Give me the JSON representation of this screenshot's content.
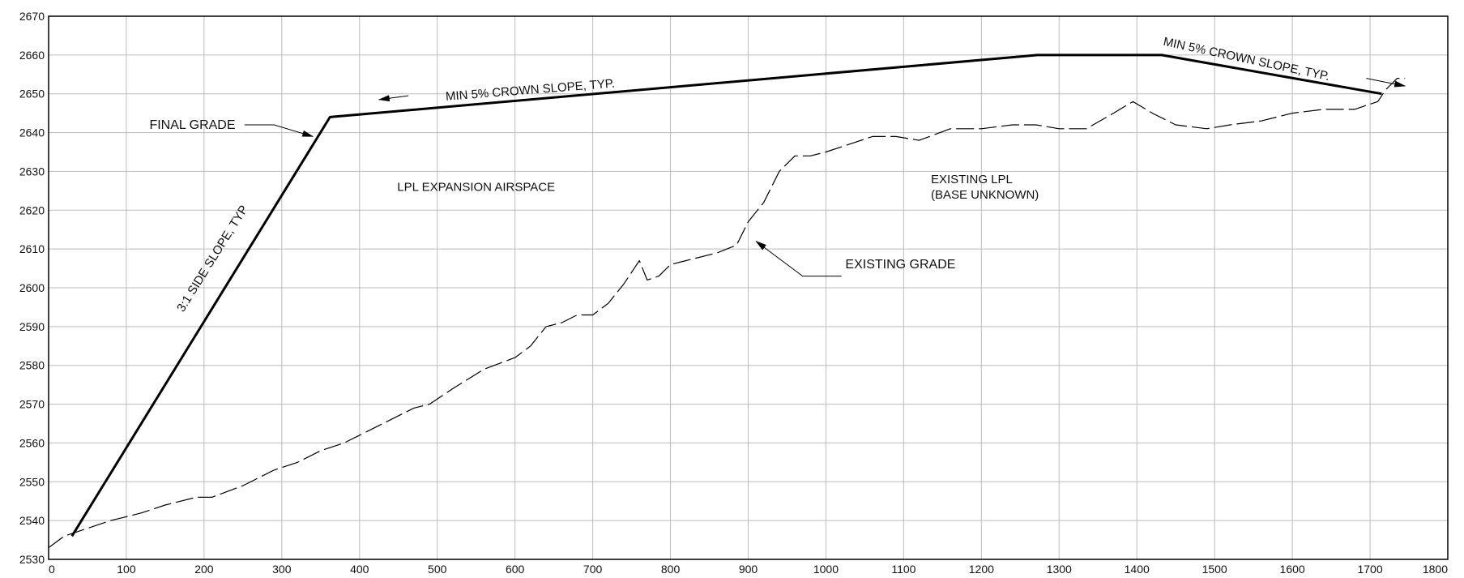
{
  "chart_data": {
    "type": "line",
    "title": "",
    "xlabel": "",
    "ylabel": "",
    "xlim": [
      0,
      1800
    ],
    "ylim": [
      2530,
      2670
    ],
    "grid": true,
    "x_ticks": [
      0,
      100,
      200,
      300,
      400,
      500,
      600,
      700,
      800,
      900,
      1000,
      1100,
      1200,
      1300,
      1400,
      1500,
      1600,
      1700,
      1800
    ],
    "y_ticks": [
      2530,
      2540,
      2550,
      2560,
      2570,
      2580,
      2590,
      2600,
      2610,
      2620,
      2630,
      2640,
      2650,
      2660,
      2670
    ],
    "series": [
      {
        "name": "FINAL GRADE",
        "style": "solid",
        "color": "#000000",
        "x": [
          30,
          362,
          1272,
          1432,
          1715
        ],
        "y": [
          2536,
          2644,
          2660,
          2660,
          2650
        ]
      },
      {
        "name": "EXISTING GRADE",
        "style": "dashed",
        "color": "#000000",
        "x": [
          0,
          20,
          50,
          80,
          100,
          120,
          150,
          190,
          210,
          250,
          290,
          320,
          350,
          380,
          400,
          430,
          470,
          490,
          520,
          560,
          600,
          620,
          640,
          660,
          680,
          700,
          720,
          740,
          760,
          770,
          785,
          800,
          820,
          860,
          885,
          900,
          920,
          940,
          960,
          980,
          1000,
          1030,
          1060,
          1090,
          1120,
          1160,
          1200,
          1240,
          1270,
          1300,
          1335,
          1370,
          1395,
          1420,
          1450,
          1490,
          1520,
          1560,
          1600,
          1640,
          1680,
          1710,
          1720,
          1735,
          1745
        ],
        "y": [
          2533,
          2536,
          2538,
          2540,
          2541,
          2542,
          2544,
          2546,
          2546,
          2549,
          2553,
          2555,
          2558,
          2560,
          2562,
          2565,
          2569,
          2570,
          2574,
          2579,
          2582,
          2585,
          2590,
          2591,
          2593,
          2593,
          2596,
          2601,
          2607,
          2602,
          2603,
          2606,
          2607,
          2609,
          2611,
          2617,
          2622,
          2630,
          2634,
          2634,
          2635,
          2637,
          2639,
          2639,
          2638,
          2641,
          2641,
          2642,
          2642,
          2641,
          2641,
          2645,
          2648,
          2645,
          2642,
          2641,
          2642,
          2643,
          2645,
          2646,
          2646,
          2648,
          2651,
          2654,
          2654
        ]
      }
    ],
    "annotations": [
      {
        "id": "final-grade",
        "text": "FINAL GRADE",
        "x": 185,
        "y": 2641
      },
      {
        "id": "crown-slope-left",
        "text": "MIN 5% CROWN SLOPE, TYP.",
        "x": 620,
        "y": 2650
      },
      {
        "id": "crown-slope-right",
        "text": "MIN 5% CROWN SLOPE, TYP.",
        "x": 1540,
        "y": 2658
      },
      {
        "id": "side-slope",
        "text": "3:1 SIDE SLOPE, TYP",
        "x": 215,
        "y": 2607
      },
      {
        "id": "expansion-airspace",
        "text": "LPL EXPANSION AIRSPACE",
        "x": 550,
        "y": 2625
      },
      {
        "id": "existing-lpl",
        "text": "EXISTING LPL",
        "x": 1135,
        "y": 2627
      },
      {
        "id": "base-unknown",
        "text": "(BASE UNKNOWN)",
        "x": 1135,
        "y": 2623
      },
      {
        "id": "existing-grade",
        "text": "EXISTING GRADE",
        "x": 1025,
        "y": 2605
      }
    ]
  }
}
